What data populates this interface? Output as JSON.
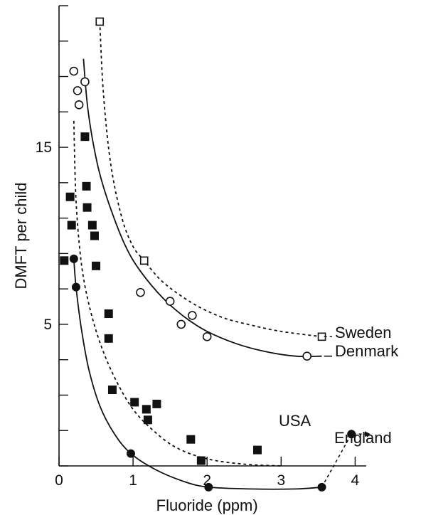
{
  "chart_data": {
    "type": "scatter",
    "xlabel": "Fluoride (ppm)",
    "ylabel": "DMFT per child",
    "xlim": [
      0,
      4.15
    ],
    "ylim": [
      -3,
      23
    ],
    "x_ticks": [
      0,
      1,
      2,
      3,
      4
    ],
    "x_tick_labels": [
      "0",
      "1",
      "2",
      "3",
      "4"
    ],
    "y_ticks": [
      15,
      5
    ],
    "y_tick_labels": [
      "15",
      "5"
    ],
    "y_minor_ticks": [
      -3,
      -1,
      1,
      3,
      5,
      7,
      9,
      11,
      13,
      15,
      17,
      19,
      21,
      23
    ],
    "grid": false,
    "colors": {
      "ink": "#111111",
      "marker_fill": "#ffffff"
    },
    "series": [
      {
        "name": "Sweden",
        "marker": "open-square",
        "line": "dashed",
        "points": [
          [
            0.55,
            22.1
          ],
          [
            1.15,
            8.6
          ],
          [
            3.55,
            4.3
          ]
        ],
        "curve": [
          [
            0.55,
            22.1
          ],
          [
            0.6,
            18.0
          ],
          [
            0.7,
            14.0
          ],
          [
            0.85,
            11.0
          ],
          [
            1.0,
            9.4
          ],
          [
            1.15,
            8.6
          ],
          [
            1.4,
            7.4
          ],
          [
            1.8,
            6.2
          ],
          [
            2.2,
            5.4
          ],
          [
            2.6,
            4.95
          ],
          [
            3.0,
            4.6
          ],
          [
            3.55,
            4.3
          ]
        ]
      },
      {
        "name": "Denmark",
        "marker": "open-circle",
        "line": "solid",
        "points": [
          [
            0.2,
            19.3
          ],
          [
            0.25,
            18.2
          ],
          [
            0.27,
            17.4
          ],
          [
            0.35,
            18.7
          ],
          [
            1.1,
            6.8
          ],
          [
            1.5,
            6.3
          ],
          [
            1.65,
            5.0
          ],
          [
            1.8,
            5.5
          ],
          [
            2.0,
            4.3
          ],
          [
            3.35,
            3.2
          ]
        ],
        "curve": [
          [
            0.33,
            20.0
          ],
          [
            0.38,
            17.5
          ],
          [
            0.45,
            15.5
          ],
          [
            0.55,
            13.5
          ],
          [
            0.7,
            11.5
          ],
          [
            0.9,
            9.4
          ],
          [
            1.1,
            8.0
          ],
          [
            1.4,
            6.5
          ],
          [
            1.7,
            5.4
          ],
          [
            2.0,
            4.6
          ],
          [
            2.4,
            3.9
          ],
          [
            2.8,
            3.45
          ],
          [
            3.2,
            3.2
          ],
          [
            3.55,
            3.2
          ]
        ]
      },
      {
        "name": "USA",
        "marker": "filled-square",
        "line": "dashed",
        "points": [
          [
            0.07,
            8.6
          ],
          [
            0.15,
            12.2
          ],
          [
            0.17,
            10.6
          ],
          [
            0.35,
            15.6
          ],
          [
            0.37,
            12.8
          ],
          [
            0.38,
            11.6
          ],
          [
            0.45,
            10.6
          ],
          [
            0.48,
            10.0
          ],
          [
            0.5,
            8.3
          ],
          [
            0.67,
            5.6
          ],
          [
            0.67,
            4.2
          ],
          [
            0.72,
            1.3
          ],
          [
            1.02,
            0.6
          ],
          [
            1.18,
            0.2
          ],
          [
            1.2,
            -0.4
          ],
          [
            1.32,
            0.5
          ],
          [
            1.78,
            -1.5
          ],
          [
            1.92,
            -2.7
          ],
          [
            2.68,
            -2.1
          ]
        ],
        "curve": [
          [
            0.2,
            16.5
          ],
          [
            0.23,
            12.0
          ],
          [
            0.3,
            8.5
          ],
          [
            0.4,
            6.2
          ],
          [
            0.55,
            4.0
          ],
          [
            0.75,
            2.0
          ],
          [
            1.0,
            0.2
          ],
          [
            1.3,
            -1.1
          ],
          [
            1.6,
            -2.0
          ],
          [
            2.0,
            -2.6
          ],
          [
            2.5,
            -2.9
          ],
          [
            3.0,
            -3.0
          ]
        ]
      },
      {
        "name": "England",
        "marker": "filled-circle",
        "line": "solid",
        "points": [
          [
            0.2,
            8.7
          ],
          [
            0.23,
            7.1
          ],
          [
            0.97,
            -2.3
          ],
          [
            2.02,
            -4.2
          ],
          [
            3.55,
            -4.2
          ],
          [
            3.95,
            -1.2
          ]
        ],
        "curve": [
          [
            0.2,
            8.7
          ],
          [
            0.23,
            7.1
          ],
          [
            0.3,
            4.8
          ],
          [
            0.4,
            2.5
          ],
          [
            0.55,
            0.4
          ],
          [
            0.75,
            -1.2
          ],
          [
            0.97,
            -2.3
          ],
          [
            1.3,
            -3.2
          ],
          [
            1.7,
            -3.9
          ],
          [
            2.02,
            -4.2
          ],
          [
            2.6,
            -4.3
          ],
          [
            3.2,
            -4.3
          ],
          [
            3.55,
            -4.2
          ]
        ],
        "arrow": [
          [
            3.55,
            -4.2
          ],
          [
            3.95,
            -1.2
          ],
          [
            4.2,
            -1.2
          ]
        ]
      }
    ]
  }
}
